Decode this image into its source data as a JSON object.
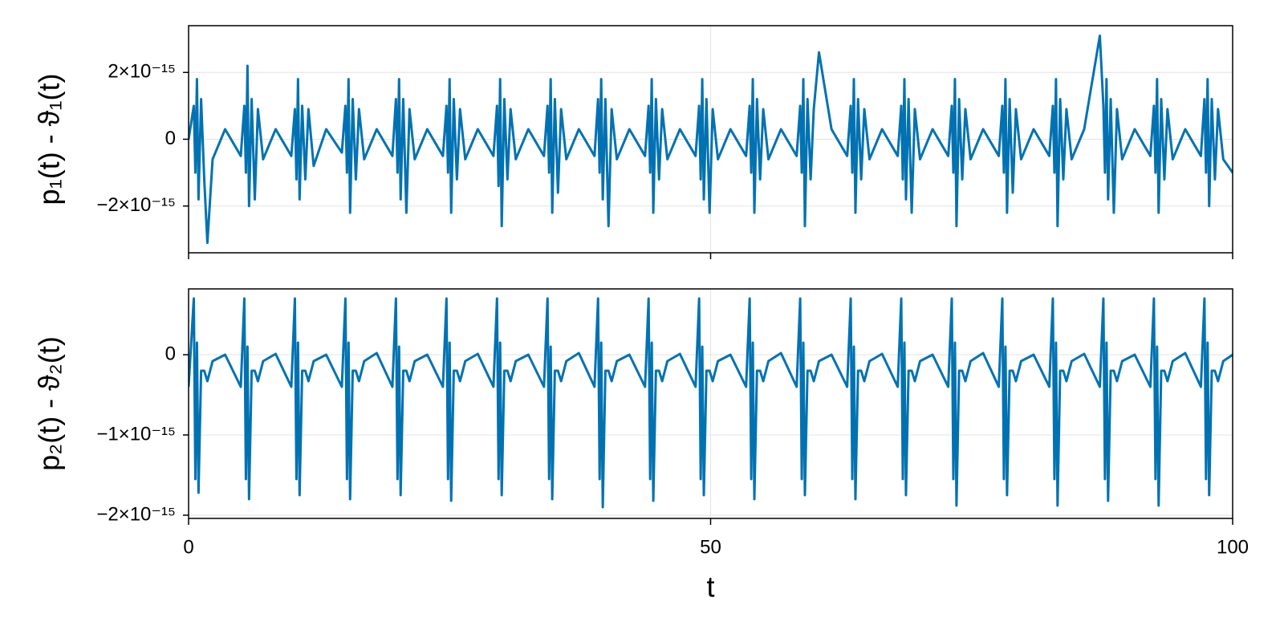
{
  "chart_data": [
    {
      "type": "line",
      "ylabel": "p₁(t) - ϑ₁(t)",
      "x": [
        0,
        0.5,
        0.65,
        0.8,
        0.95,
        1.2,
        1.5,
        1.8,
        2.3,
        3.5,
        5.0,
        5.34,
        5.49,
        5.64,
        5.79,
        6.04,
        6.34,
        6.64,
        7.14,
        8.34,
        9.84,
        10.18,
        10.33,
        10.48,
        10.63,
        10.88,
        11.18,
        11.48,
        11.98,
        13.18,
        14.68,
        15.02,
        15.17,
        15.32,
        15.47,
        15.72,
        16.02,
        16.32,
        16.82,
        18.02,
        19.52,
        19.86,
        20.01,
        20.16,
        20.31,
        20.56,
        20.86,
        21.16,
        21.66,
        22.86,
        24.36,
        24.7,
        24.85,
        25,
        25.15,
        25.4,
        25.7,
        26,
        26.5,
        27.7,
        29.2,
        29.54,
        29.69,
        29.84,
        29.99,
        30.24,
        30.54,
        30.84,
        31.34,
        32.54,
        34.04,
        34.38,
        34.53,
        34.68,
        34.83,
        35.08,
        35.38,
        35.68,
        36.18,
        37.38,
        38.88,
        39.22,
        39.37,
        39.52,
        39.67,
        39.92,
        40.22,
        40.52,
        41.02,
        42.22,
        43.72,
        44.06,
        44.21,
        44.36,
        44.51,
        44.76,
        45.06,
        45.36,
        45.86,
        47.06,
        48.56,
        48.9,
        49.05,
        49.2,
        49.35,
        49.6,
        49.9,
        50.2,
        50.7,
        51.9,
        53.4,
        53.74,
        53.89,
        54.04,
        54.19,
        54.44,
        54.74,
        55.04,
        55.54,
        56.74,
        58.24,
        58.58,
        58.73,
        58.88,
        59.03,
        59.28,
        59.58,
        59.88,
        60.38,
        61.58,
        63.08,
        63.42,
        63.57,
        63.72,
        63.87,
        64.12,
        64.42,
        64.72,
        65.22,
        66.42,
        67.92,
        68.26,
        68.41,
        68.56,
        68.71,
        68.96,
        69.26,
        69.56,
        70.06,
        71.26,
        72.76,
        73.1,
        73.25,
        73.4,
        73.55,
        73.8,
        74.1,
        74.4,
        74.9,
        76.1,
        77.6,
        77.94,
        78.09,
        78.24,
        78.39,
        78.64,
        78.94,
        79.24,
        79.74,
        80.94,
        82.44,
        82.78,
        82.93,
        83.08,
        83.23,
        83.48,
        83.78,
        84.08,
        84.58,
        85.78,
        87.28,
        87.62,
        87.77,
        87.92,
        88.07,
        88.32,
        88.62,
        88.92,
        89.42,
        90.62,
        92.12,
        92.46,
        92.61,
        92.76,
        92.91,
        93.16,
        93.46,
        93.76,
        94.26,
        95.46,
        96.96,
        97.3,
        97.45,
        97.6,
        97.75,
        98,
        98.3,
        98.6,
        99.1,
        100
      ],
      "series": [
        {
          "color": "#0072b2",
          "values": [
            0,
            1e-15,
            -1e-15,
            1.8e-15,
            -1.8e-15,
            1.2e-15,
            -1.2e-15,
            -3.1e-15,
            -6e-16,
            3e-16,
            -5e-16,
            1e-15,
            -1e-15,
            2.2e-15,
            -2e-15,
            1.2e-15,
            -1.8e-15,
            9e-16,
            -6e-16,
            3e-16,
            -5e-16,
            9e-16,
            -1.2e-15,
            1.8e-15,
            -1.8e-15,
            1e-15,
            -1.2e-15,
            9e-16,
            -8e-16,
            3e-16,
            -4e-16,
            1e-15,
            -1e-15,
            1.8e-15,
            -2.2e-15,
            1.2e-15,
            -1.2e-15,
            9e-16,
            -6e-16,
            3e-16,
            -5e-16,
            1.2e-15,
            -1e-15,
            1.8e-15,
            -1.8e-15,
            1.2e-15,
            -2.2e-15,
            9e-16,
            -6e-16,
            3e-16,
            -5e-16,
            1e-15,
            -1e-15,
            1.8e-15,
            -2.2e-15,
            1.2e-15,
            -1.2e-15,
            9e-16,
            -6e-16,
            3e-16,
            -5e-16,
            1e-15,
            -1.4e-15,
            1.8e-15,
            -2.6e-15,
            1.2e-15,
            -1.2e-15,
            9e-16,
            -6e-16,
            3e-16,
            -5e-16,
            1e-15,
            -1e-15,
            1.8e-15,
            -2.2e-15,
            1.2e-15,
            -1.6e-15,
            9e-16,
            -6e-16,
            3e-16,
            -5e-16,
            1.2e-15,
            -1e-15,
            1.8e-15,
            -1.8e-15,
            1.2e-15,
            -2.6e-15,
            9e-16,
            -6e-16,
            3e-16,
            -5e-16,
            1e-15,
            -1e-15,
            1.8e-15,
            -2.2e-15,
            1.2e-15,
            -1.2e-15,
            9e-16,
            -6e-16,
            3e-16,
            -5e-16,
            1e-15,
            -1.2e-15,
            1.8e-15,
            -1.8e-15,
            1.2e-15,
            -2.2e-15,
            9e-16,
            -6e-16,
            3e-16,
            -5e-16,
            1e-15,
            -1e-15,
            1.8e-15,
            -2.2e-15,
            1.2e-15,
            -1.2e-15,
            9e-16,
            -6e-16,
            3e-16,
            -5e-16,
            1e-15,
            -1e-15,
            1.8e-15,
            -2.6e-15,
            1.2e-15,
            -1.2e-15,
            9e-16,
            2.6e-15,
            3e-16,
            -5e-16,
            1e-15,
            -1e-15,
            1.8e-15,
            -2.2e-15,
            1.2e-15,
            -1.2e-15,
            9e-16,
            -6e-16,
            3e-16,
            -5e-16,
            1e-15,
            -1.2e-15,
            1.8e-15,
            -1.8e-15,
            1.2e-15,
            -2.2e-15,
            9e-16,
            -6e-16,
            3e-16,
            -5e-16,
            1e-15,
            -1e-15,
            1.8e-15,
            -2.6e-15,
            1.2e-15,
            -1.2e-15,
            9e-16,
            -6e-16,
            3e-16,
            -5e-16,
            1e-15,
            -1e-15,
            1.8e-15,
            -2.2e-15,
            1.2e-15,
            -1.6e-15,
            9e-16,
            -6e-16,
            3e-16,
            -5e-16,
            1e-15,
            -1e-15,
            1.8e-15,
            -2.6e-15,
            1.2e-15,
            -1.2e-15,
            9e-16,
            -6e-16,
            3e-16,
            3.1e-15,
            1e-15,
            -1e-15,
            1.8e-15,
            -1.8e-15,
            1.2e-15,
            -2.2e-15,
            9e-16,
            -6e-16,
            3e-16,
            -5e-16,
            1e-15,
            -1e-15,
            1.8e-15,
            -2.2e-15,
            1.2e-15,
            -1.2e-15,
            9e-16,
            -6e-16,
            3e-16,
            -5e-16,
            1.2e-15,
            -1e-15,
            1.8e-15,
            -2e-15,
            1.2e-15,
            -1.2e-15,
            9e-16,
            -6e-16,
            -1e-15
          ]
        }
      ],
      "xlim": [
        0,
        100
      ],
      "xticks": [
        0,
        50,
        100
      ],
      "ylim": [
        -3.4e-15,
        3.4e-15
      ],
      "yticks": [
        {
          "value": -2e-15,
          "label": "−2×10⁻¹⁵"
        },
        0,
        {
          "value": 2e-15,
          "label": "2×10⁻¹⁵"
        }
      ],
      "grid": true
    },
    {
      "type": "line",
      "ylabel": "p₂(t) - ϑ₂(t)",
      "xlabel": "t",
      "x": [
        0,
        0.5,
        0.65,
        0.8,
        0.95,
        1.2,
        1.5,
        1.8,
        2.3,
        3.5,
        5.0,
        5.34,
        5.49,
        5.64,
        5.79,
        6.04,
        6.34,
        6.64,
        7.14,
        8.34,
        9.84,
        10.18,
        10.33,
        10.48,
        10.63,
        10.88,
        11.18,
        11.48,
        11.98,
        13.18,
        14.68,
        15.02,
        15.17,
        15.32,
        15.47,
        15.72,
        16.02,
        16.32,
        16.82,
        18.02,
        19.52,
        19.86,
        20.01,
        20.16,
        20.31,
        20.56,
        20.86,
        21.16,
        21.66,
        22.86,
        24.36,
        24.7,
        24.85,
        25,
        25.15,
        25.4,
        25.7,
        26,
        26.5,
        27.7,
        29.2,
        29.54,
        29.69,
        29.84,
        29.99,
        30.24,
        30.54,
        30.84,
        31.34,
        32.54,
        34.04,
        34.38,
        34.53,
        34.68,
        34.83,
        35.08,
        35.38,
        35.68,
        36.18,
        37.38,
        38.88,
        39.22,
        39.37,
        39.52,
        39.67,
        39.92,
        40.22,
        40.52,
        41.02,
        42.22,
        43.72,
        44.06,
        44.21,
        44.36,
        44.51,
        44.76,
        45.06,
        45.36,
        45.86,
        47.06,
        48.56,
        48.9,
        49.05,
        49.2,
        49.35,
        49.6,
        49.9,
        50.2,
        50.7,
        51.9,
        53.4,
        53.74,
        53.89,
        54.04,
        54.19,
        54.44,
        54.74,
        55.04,
        55.54,
        56.74,
        58.24,
        58.58,
        58.73,
        58.88,
        59.03,
        59.28,
        59.58,
        59.88,
        60.38,
        61.58,
        63.08,
        63.42,
        63.57,
        63.72,
        63.87,
        64.12,
        64.42,
        64.72,
        65.22,
        66.42,
        67.92,
        68.26,
        68.41,
        68.56,
        68.71,
        68.96,
        69.26,
        69.56,
        70.06,
        71.26,
        72.76,
        73.1,
        73.25,
        73.4,
        73.55,
        73.8,
        74.1,
        74.4,
        74.9,
        76.1,
        77.6,
        77.94,
        78.09,
        78.24,
        78.39,
        78.64,
        78.94,
        79.24,
        79.74,
        80.94,
        82.44,
        82.78,
        82.93,
        83.08,
        83.23,
        83.48,
        83.78,
        84.08,
        84.58,
        85.78,
        87.28,
        87.62,
        87.77,
        87.92,
        88.07,
        88.32,
        88.62,
        88.92,
        89.42,
        90.62,
        92.12,
        92.46,
        92.61,
        92.76,
        92.91,
        93.16,
        93.46,
        93.76,
        94.26,
        95.46,
        96.96,
        97.3,
        97.45,
        97.6,
        97.75,
        98,
        98.3,
        98.6,
        99.1,
        100
      ],
      "series": [
        {
          "color": "#0072b2",
          "values": [
            -4e-16,
            7e-16,
            -1.55e-15,
            1.5e-16,
            -1.72e-15,
            -2e-16,
            -2e-16,
            -3.3e-16,
            -8e-17,
            0,
            -4e-16,
            7e-16,
            -1.55e-15,
            1e-16,
            -1.8e-15,
            -2e-16,
            -2e-16,
            -3.3e-16,
            -8e-17,
            1e-17,
            -4e-16,
            7e-16,
            -1.55e-15,
            1.5e-16,
            -1.75e-15,
            -2e-16,
            -2e-16,
            -3.3e-16,
            -8e-17,
            0,
            -4e-16,
            7e-16,
            -1.55e-15,
            1.5e-16,
            -1.8e-15,
            -2e-16,
            -2e-16,
            -3.3e-16,
            -8e-17,
            2e-17,
            -4e-16,
            7e-16,
            -1.55e-15,
            1e-16,
            -1.75e-15,
            -2e-16,
            -2e-16,
            -3.3e-16,
            -8e-17,
            0,
            -4e-16,
            7e-16,
            -1.55e-15,
            1.5e-16,
            -1.82e-15,
            -2e-16,
            -2e-16,
            -3.3e-16,
            -8e-17,
            1e-17,
            -4e-16,
            7e-16,
            -1.55e-15,
            1.5e-16,
            -1.75e-15,
            -2e-16,
            -2e-16,
            -3.3e-16,
            -8e-17,
            0,
            -4e-16,
            7e-16,
            -1.55e-15,
            1e-16,
            -1.8e-15,
            -2e-16,
            -2e-16,
            -3.3e-16,
            -8e-17,
            2e-17,
            -4e-16,
            7e-16,
            -1.55e-15,
            1.5e-16,
            -1.9e-15,
            -2e-16,
            -2e-16,
            -3.3e-16,
            -8e-17,
            0,
            -4e-16,
            7e-16,
            -1.55e-15,
            1.5e-16,
            -1.82e-15,
            -2e-16,
            -2e-16,
            -3.3e-16,
            -8e-17,
            1e-17,
            -4e-16,
            7e-16,
            -1.55e-15,
            1e-16,
            -1.75e-15,
            -2e-16,
            -2e-16,
            -3.3e-16,
            -8e-17,
            0,
            -4e-16,
            7e-16,
            -1.55e-15,
            1.5e-16,
            -1.8e-15,
            -2e-16,
            -2e-16,
            -3.3e-16,
            -8e-17,
            2e-17,
            -4e-16,
            7e-16,
            -1.55e-15,
            1.5e-16,
            -1.75e-15,
            -2e-16,
            -2e-16,
            -3.3e-16,
            -8e-17,
            0,
            -4e-16,
            7e-16,
            -1.55e-15,
            1e-16,
            -1.8e-15,
            -2e-16,
            -2e-16,
            -3.3e-16,
            -8e-17,
            1e-17,
            -4e-16,
            7e-16,
            -1.55e-15,
            1.5e-16,
            -1.75e-15,
            -2e-16,
            -2e-16,
            -3.3e-16,
            -8e-17,
            0,
            -4e-16,
            7e-16,
            -1.55e-15,
            1.5e-16,
            -1.88e-15,
            -2e-16,
            -2e-16,
            -3.3e-16,
            -8e-17,
            2e-17,
            -4e-16,
            7e-16,
            -1.55e-15,
            1e-16,
            -1.75e-15,
            -2e-16,
            -2e-16,
            -3.3e-16,
            -8e-17,
            0,
            -4e-16,
            7e-16,
            -1.55e-15,
            1.5e-16,
            -1.88e-15,
            -2e-16,
            -2e-16,
            -3.3e-16,
            -8e-17,
            1e-17,
            -4e-16,
            7e-16,
            -1.55e-15,
            1.5e-16,
            -1.82e-15,
            -2e-16,
            -2e-16,
            -3.3e-16,
            -8e-17,
            0,
            -4e-16,
            7e-16,
            -1.55e-15,
            1e-16,
            -1.88e-15,
            -2e-16,
            -2e-16,
            -3.3e-16,
            -8e-17,
            2e-17,
            -4e-16,
            7e-16,
            -1.55e-15,
            1.5e-16,
            -1.75e-15,
            -2e-16,
            -2e-16,
            -3.3e-16,
            -8e-17,
            0
          ]
        }
      ],
      "xlim": [
        0,
        100
      ],
      "xticks": [
        0,
        50,
        100
      ],
      "ylim": [
        -2.04e-15,
        8.2e-16
      ],
      "yticks": [
        {
          "value": -2e-15,
          "label": "−2×10⁻¹⁵"
        },
        {
          "value": -1e-15,
          "label": "−1×10⁻¹⁵"
        },
        0
      ],
      "grid": true
    }
  ]
}
